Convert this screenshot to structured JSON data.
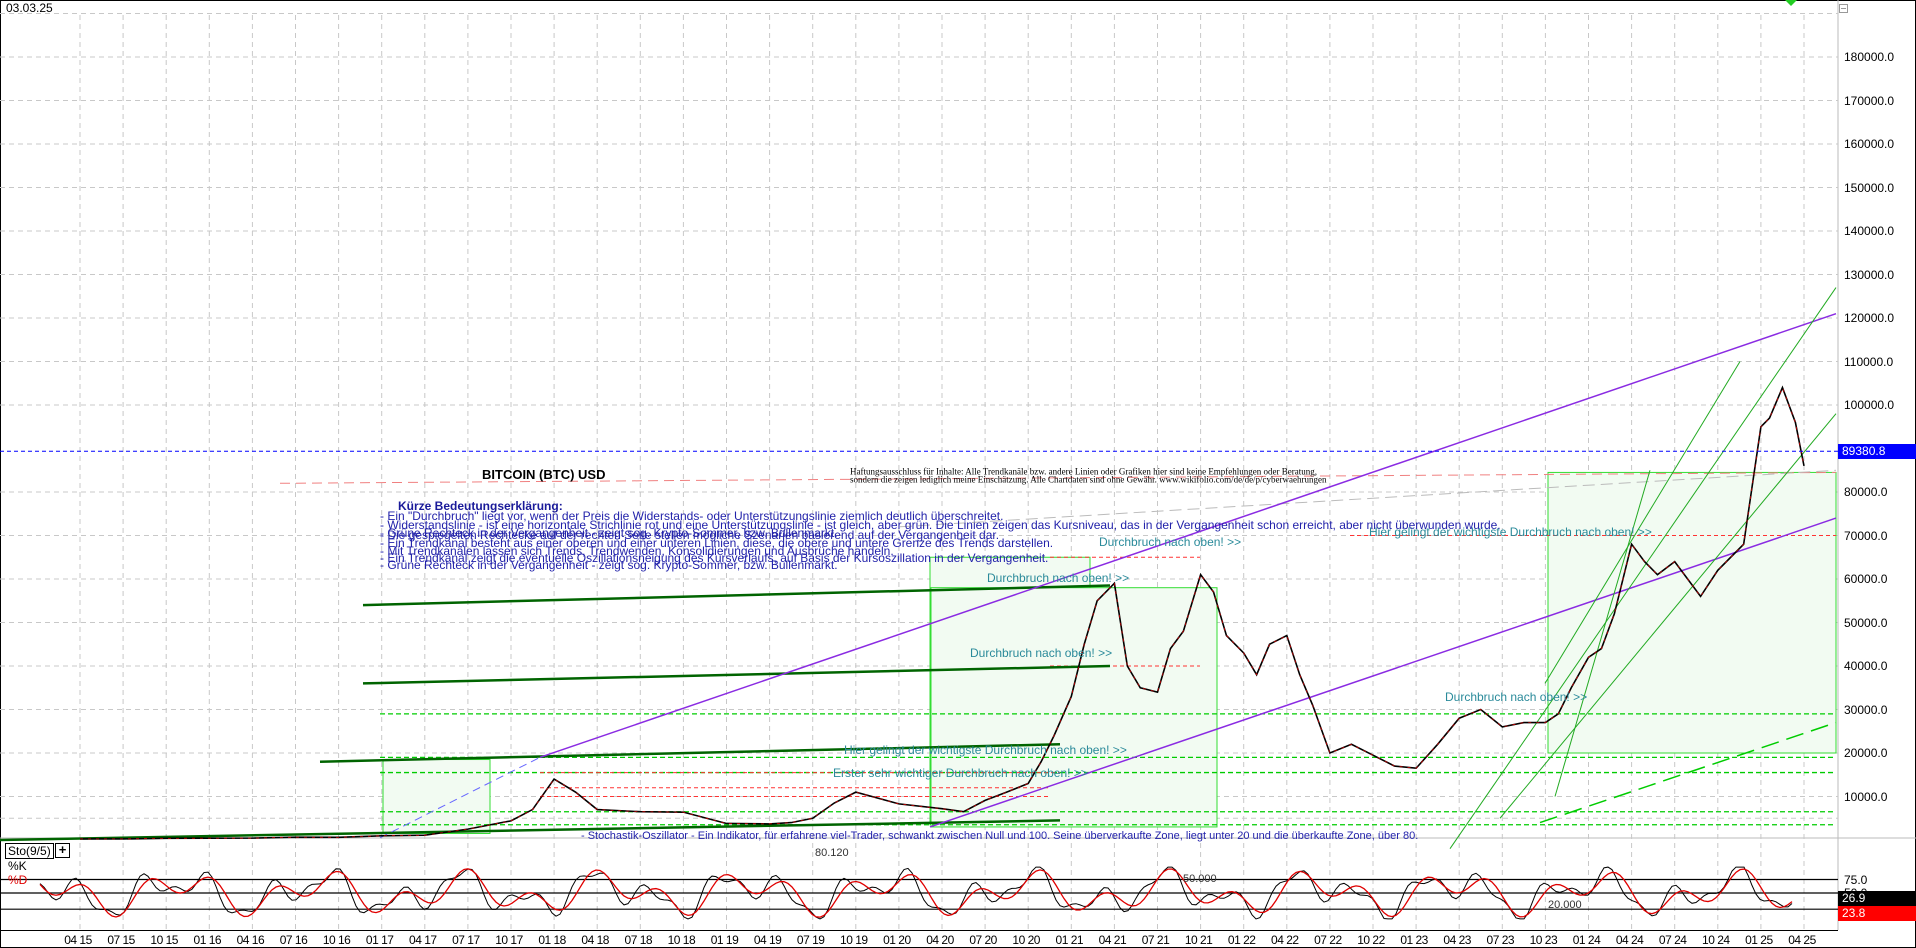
{
  "header": {
    "date": "03.03.25"
  },
  "chart_data": {
    "type": "candlestick",
    "title": "BITCOIN (BTC) USD",
    "instrument": "Bitcoin (BTC) USD",
    "last_price": 89380.8,
    "y_axis": {
      "ticks": [
        180000.0,
        170000.0,
        160000.0,
        150000.0,
        140000.0,
        130000.0,
        120000.0,
        110000.0,
        100000.0,
        80000.0,
        70000.0,
        60000.0,
        50000.0,
        40000.0,
        30000.0,
        20000.0,
        10000.0
      ],
      "labels": [
        "180000.0",
        "170000.0",
        "160000.0",
        "150000.0",
        "140000.0",
        "130000.0",
        "120000.0",
        "110000.0",
        "100000.0",
        "80000.0",
        "70000.0",
        "60000.0",
        "50000.0",
        "40000.0",
        "30000.0",
        "20000.0",
        "10000.0"
      ],
      "range": [
        0,
        190000
      ]
    },
    "x_axis": {
      "labels": [
        "04 15",
        "07 15",
        "10 15",
        "01 16",
        "04 16",
        "07 16",
        "10 16",
        "01 17",
        "04 17",
        "07 17",
        "10 17",
        "01 18",
        "04 18",
        "07 18",
        "10 18",
        "01 19",
        "04 19",
        "07 19",
        "10 19",
        "01 20",
        "04 20",
        "07 20",
        "10 20",
        "01 21",
        "04 21",
        "07 21",
        "10 21",
        "01 22",
        "04 22",
        "07 22",
        "10 22",
        "01 23",
        "04 23",
        "07 23",
        "10 23",
        "01 24",
        "04 24",
        "07 24",
        "10 24",
        "01 25",
        "04 25"
      ]
    },
    "price_series": {
      "x_quarter_index": [
        0,
        1,
        2,
        3,
        4,
        5,
        6,
        7,
        8,
        9,
        10,
        10.5,
        11,
        11.5,
        12,
        13,
        14,
        15,
        16,
        16.5,
        17,
        17.5,
        18,
        19,
        20,
        20.5,
        21,
        21.5,
        22,
        22.3,
        22.6,
        23,
        23.3,
        23.6,
        24,
        24.3,
        24.6,
        25,
        25.3,
        25.6,
        26,
        26.3,
        26.6,
        27,
        27.3,
        27.6,
        28,
        28.3,
        28.6,
        29,
        29.5,
        30,
        30.5,
        31,
        31.5,
        32,
        32.5,
        33,
        33.5,
        34,
        34.3,
        34.6,
        35,
        35.3,
        35.6,
        36,
        36.3,
        36.6,
        37,
        37.3,
        37.6,
        38,
        38.3,
        38.6,
        39,
        39.2,
        39.5,
        39.8,
        40
      ],
      "close": [
        250,
        240,
        380,
        420,
        430,
        650,
        620,
        970,
        1100,
        2500,
        4400,
        7000,
        14000,
        11000,
        7000,
        6500,
        6400,
        3800,
        3700,
        4000,
        5000,
        8500,
        11000,
        8300,
        7200,
        6500,
        9100,
        11000,
        13000,
        18000,
        24000,
        33000,
        45000,
        55000,
        59000,
        40000,
        35000,
        34000,
        44000,
        48000,
        61000,
        57000,
        47000,
        43000,
        38000,
        45000,
        47000,
        38000,
        31000,
        20000,
        22000,
        19500,
        17000,
        16500,
        22000,
        28000,
        30000,
        26000,
        27000,
        27000,
        29000,
        35000,
        42000,
        44000,
        52000,
        68000,
        64000,
        61000,
        64000,
        60000,
        56000,
        62000,
        65000,
        68000,
        95000,
        97000,
        104000,
        96000,
        86000
      ]
    },
    "annotations": [
      {
        "text": "Durchbruch nach oben! >>",
        "approx_price": 68000
      },
      {
        "text": "Durchbruch nach oben! >>",
        "approx_price": 58000
      },
      {
        "text": "Durchbruch nach oben! >>",
        "approx_price": 40000
      },
      {
        "text": "Durchbruch nach oben! >>",
        "approx_price": 30000
      },
      {
        "text": "Hier gelingt der wichtigste Durchbruch nach oben! >>",
        "approx_price": 19000
      },
      {
        "text": "Erster sehr wichtiger Durchbruch nach oben! >>",
        "approx_price": 14000
      },
      {
        "text": "Hier gelingt der wichtigste Durchbruch nach oben! >>",
        "approx_price": 70000
      }
    ],
    "indicator": {
      "name": "Sto(9/5)",
      "lines": [
        "%K",
        "%D"
      ],
      "levels": [
        75.0,
        50.0
      ],
      "last_k": 26.9,
      "last_d": 23.8,
      "inline_labels": [
        "80.120",
        "50.000",
        "20.000"
      ]
    },
    "grid": true
  },
  "legend": {
    "heading": "Kürze Bedeutungserklärung:",
    "lines": [
      "- Ein \"Durchbruch\" liegt vor, wenn der Preis die Widerstands- oder Unterstützungslinie ziemlich deutlich überschreitet.",
      "- Widerstandslinie - ist eine horizontale Strichlinie rot und eine Unterstützungslinie - ist gleich, aber grün. Die Linien zeigen das Kursniveau, das in der Vergangenheit schon erreicht, aber nicht überwunden wurde.",
      "- Grüne Rechteck in der Vergangenheit - zeigt sog. Krypto-Sommer, bzw. Bullenmarkt.",
      "- Die gespiegelten Rechtecke auf der rechten Seite stellen mögliche Szenarien basierend auf der Vergangenheit dar.",
      "- Ein Trendkanal besteht aus einer oberen und einer unteren Linien, diese, die obere und untere Grenze des Trends darstellen.",
      "- Mit Trendkanälen lassen sich Trends, Trendwenden, Konsolidierungen und Ausbrüche handeln.",
      "- Ein Trendkanal zeigt die eventuelle Oszillationsneigung des Kursverlaufs, auf Basis der Kursoszillation in der Vergangenheit.",
      "- Grüne Rechteck in der Vergangenheit - zeigt sog. Krypto-Sommer, bzw. Bullenmarkt."
    ]
  },
  "disclaimer": {
    "line1": "Haftungsausschluss für Inhalte: Alle Trendkanäle bzw. andere Linien oder Grafiken hier sind keine Empfehlungen oder Beratung,",
    "line2": "sondern die zeigen lediglich meine Einschätzung. Alle Chartdaten sind ohne Gewähr. www.wikifolio.com/de/de/p/cyberwaehrungen"
  },
  "oscillator_note": "- Stochastik-Oszillator - Ein Indikator, für erfahrene viel-Trader, schwankt zwischen Null und 100. Seine überverkaufte Zone, liegt unter 20 und die überkaufte Zone, über 80.",
  "colors": {
    "price_badge": "#0000ff",
    "k_badge": "#000000",
    "d_badge": "#ff0000",
    "channel_purple": "#8a2be2",
    "support_green": "#00cc00",
    "dark_green": "#006400",
    "resistance_red": "#ff3333",
    "annotation_teal": "#2a8a9a",
    "legend_blue": "#2222aa",
    "rect_fill": "#f2fbf2"
  }
}
